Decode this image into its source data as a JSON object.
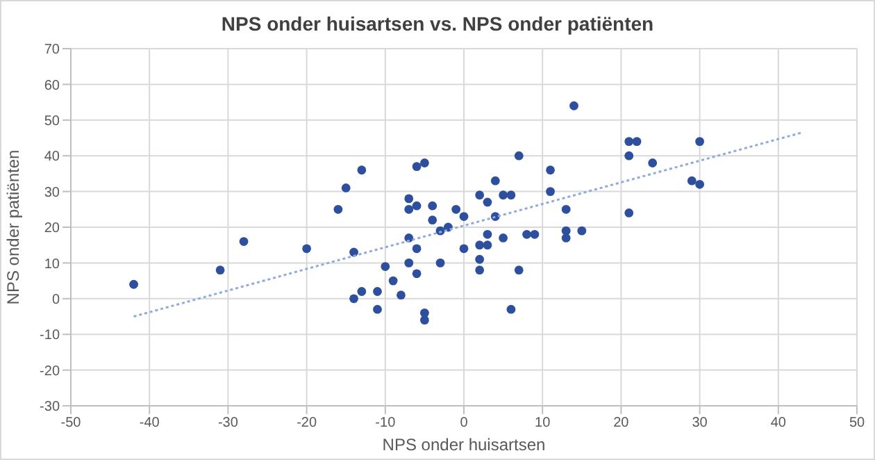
{
  "chart_data": {
    "type": "scatter",
    "title": "NPS onder huisartsen vs. NPS onder patiënten",
    "xlabel": "NPS onder huisartsen",
    "ylabel": "NPS onder patiënten",
    "xlim": [
      -50,
      50
    ],
    "xticks": [
      -50,
      -40,
      -30,
      -20,
      -10,
      0,
      10,
      20,
      30,
      40,
      50
    ],
    "ylim": [
      -30,
      70
    ],
    "yticks": [
      -30,
      -20,
      -10,
      0,
      10,
      20,
      30,
      40,
      50,
      60,
      70
    ],
    "grid": true,
    "marker": "circle",
    "series": [
      {
        "color": "#2e4f9e",
        "x": [
          -42,
          -31,
          -28,
          -20,
          -16,
          -15,
          -13,
          -14,
          -14,
          -13,
          -11,
          -11,
          -10,
          -9,
          -8,
          -7,
          -7,
          -7,
          -7,
          -6,
          -5,
          -6,
          -6,
          -6,
          -5,
          -5,
          -4,
          -4,
          -3,
          -3,
          -2,
          -1,
          0,
          0,
          2,
          2,
          2,
          2,
          3,
          3,
          3,
          4,
          4,
          5,
          5,
          6,
          6,
          7,
          7,
          8,
          9,
          11,
          11,
          13,
          13,
          13,
          14,
          15,
          21,
          22,
          21,
          21,
          24,
          29,
          30,
          30
        ],
        "values": [
          4,
          8,
          16,
          14,
          25,
          31,
          36,
          13,
          0,
          2,
          2,
          -3,
          9,
          5,
          1,
          28,
          25,
          17,
          10,
          37,
          38,
          26,
          14,
          7,
          -4,
          -6,
          26,
          22,
          19,
          10,
          20,
          25,
          23,
          14,
          29,
          15,
          11,
          8,
          27,
          18,
          15,
          33,
          23,
          29,
          17,
          29,
          -3,
          40,
          8,
          18,
          18,
          36,
          30,
          25,
          19,
          17,
          54,
          19,
          44,
          44,
          40,
          24,
          38,
          33,
          44,
          32
        ]
      },
      {
        "type": "line",
        "color": "#8faadc",
        "line_style": "dotted",
        "marker": "none",
        "x": [
          -42,
          43
        ],
        "values": [
          -5,
          46.5
        ]
      }
    ]
  }
}
